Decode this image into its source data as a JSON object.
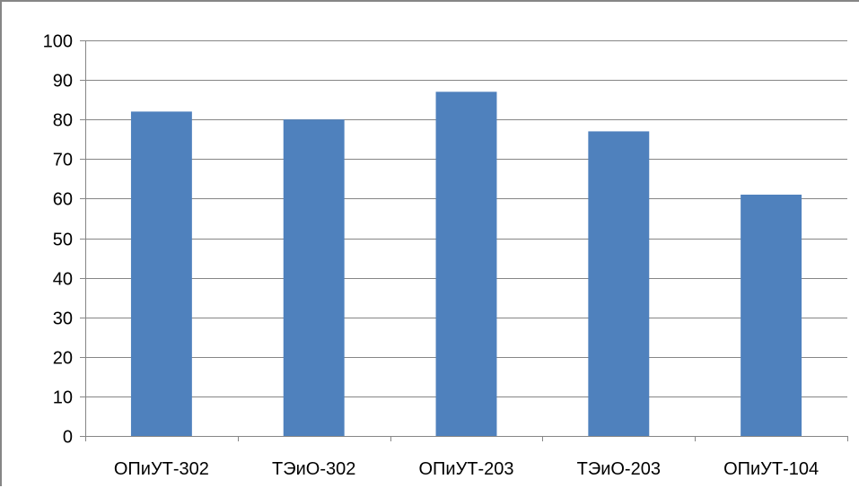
{
  "chart_data": {
    "type": "bar",
    "categories": [
      "ОПиУТ-302",
      "ТЭиО-302",
      "ОПиУТ-203",
      "ТЭиО-203",
      "ОПиУТ-104"
    ],
    "values": [
      82,
      80,
      87,
      77,
      61
    ],
    "title": "",
    "xlabel": "",
    "ylabel": "",
    "ylim": [
      0,
      100
    ],
    "yticks": [
      0,
      10,
      20,
      30,
      40,
      50,
      60,
      70,
      80,
      90,
      100
    ],
    "grid": true,
    "legend": "none",
    "bar_color": "#4F81BD",
    "grid_color": "#868686"
  }
}
